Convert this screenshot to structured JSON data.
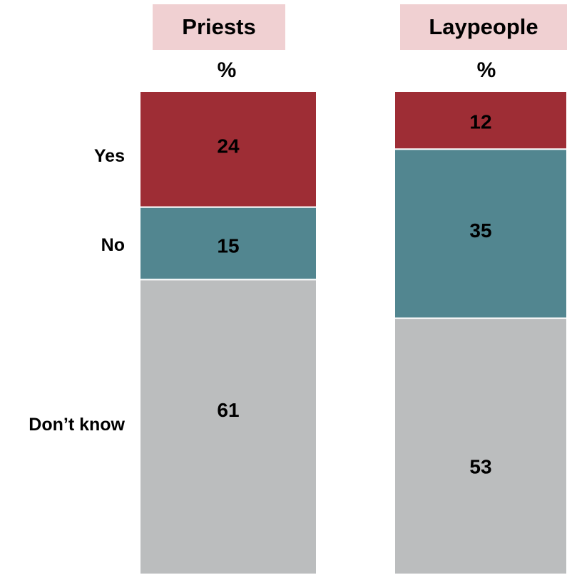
{
  "chart_data": {
    "type": "bar",
    "stacked": true,
    "percent_label": "%",
    "categories": [
      "Priests",
      "Laypeople"
    ],
    "segment_labels": [
      "Yes",
      "No",
      "Don’t know"
    ],
    "series": [
      {
        "name": "Yes",
        "values": [
          24,
          12
        ],
        "color": "#9e2d35"
      },
      {
        "name": "No",
        "values": [
          15,
          35
        ],
        "color": "#528690"
      },
      {
        "name": "Don’t know",
        "values": [
          61,
          53
        ],
        "color": "#bbbdbe"
      }
    ],
    "ylim": [
      0,
      100
    ]
  }
}
